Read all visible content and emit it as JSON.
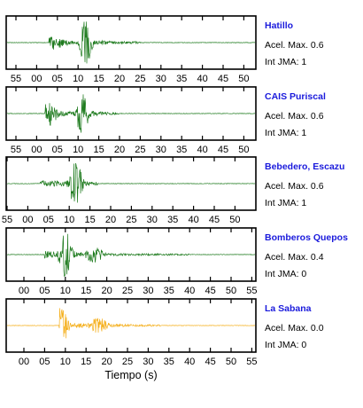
{
  "chart_data": {
    "type": "line",
    "xlabel": "Tiempo (s)",
    "accel_label": "Acel. Max.",
    "jma_label": "Int JMA:",
    "panels": [
      {
        "station": "Hatillo",
        "accel_max": "0.6",
        "int_jma": "1",
        "color": "#1d7a1d",
        "tick_labels": [
          "55",
          "00",
          "05",
          "10",
          "15",
          "20",
          "25",
          "30",
          "35",
          "40",
          "45",
          "50"
        ],
        "trace": {
          "onset": 8,
          "peak_time": 17,
          "peak_amp": 0.95,
          "secondary_time": 9.5,
          "secondary_amp": 0.3,
          "end": 30
        }
      },
      {
        "station": "CAIS Puriscal",
        "accel_max": "0.6",
        "int_jma": "1",
        "color": "#1d7a1d",
        "tick_labels": [
          "55",
          "00",
          "05",
          "10",
          "15",
          "20",
          "25",
          "30",
          "35",
          "40",
          "45",
          "50"
        ],
        "trace": {
          "onset": 7,
          "peak_time": 16,
          "peak_amp": 0.85,
          "secondary_time": 8,
          "secondary_amp": 0.55,
          "end": 25
        }
      },
      {
        "station": "Bebedero, Escazu",
        "accel_max": "0.6",
        "int_jma": "1",
        "color": "#1d7a1d",
        "tick_labels": [
          "55",
          "00",
          "05",
          "10",
          "15",
          "20",
          "25",
          "30",
          "35",
          "40",
          "45",
          "50"
        ],
        "trace": {
          "onset": 8,
          "peak_time": 16.5,
          "peak_amp": 0.95,
          "secondary_time": 9,
          "secondary_amp": 0.15,
          "end": 22
        }
      },
      {
        "station": "Bomberos Quepos",
        "accel_max": "0.4",
        "int_jma": "0",
        "color": "#1d7a1d",
        "tick_labels": [
          "00",
          "05",
          "10",
          "15",
          "20",
          "25",
          "30",
          "35",
          "40",
          "45",
          "50",
          "55"
        ],
        "trace": {
          "onset": 5,
          "peak_time": 10,
          "peak_amp": 0.95,
          "secondary_time": 17,
          "secondary_amp": 0.35,
          "end": 40
        }
      },
      {
        "station": "La Sabana",
        "accel_max": "0.0",
        "int_jma": "0",
        "color": "#f5b01e",
        "tick_labels": [
          "00",
          "05",
          "10",
          "15",
          "20",
          "25",
          "30",
          "35",
          "40",
          "45",
          "50",
          "55"
        ],
        "trace": {
          "onset": 8.5,
          "peak_time": 9,
          "peak_amp": 0.9,
          "secondary_time": 18,
          "secondary_amp": 0.35,
          "end": 33
        }
      }
    ]
  }
}
